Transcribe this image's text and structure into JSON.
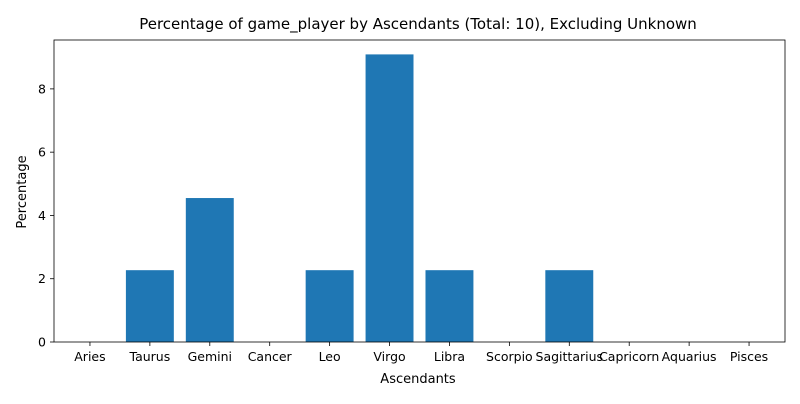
{
  "chart_data": {
    "type": "bar",
    "title": "Percentage of game_player by Ascendants (Total: 10), Excluding Unknown",
    "xlabel": "Ascendants",
    "ylabel": "Percentage",
    "categories": [
      "Aries",
      "Taurus",
      "Gemini",
      "Cancer",
      "Leo",
      "Virgo",
      "Libra",
      "Scorpio",
      "Sagittarius",
      "Capricorn",
      "Aquarius",
      "Pisces"
    ],
    "values": [
      0,
      2.27,
      4.55,
      0,
      2.27,
      9.09,
      2.27,
      0,
      2.27,
      0,
      0,
      0
    ],
    "ylim": [
      0,
      9.545
    ],
    "yticks": [
      0,
      2,
      4,
      6,
      8
    ],
    "grid": false,
    "legend": "none",
    "bar_color": "#1f77b4"
  }
}
